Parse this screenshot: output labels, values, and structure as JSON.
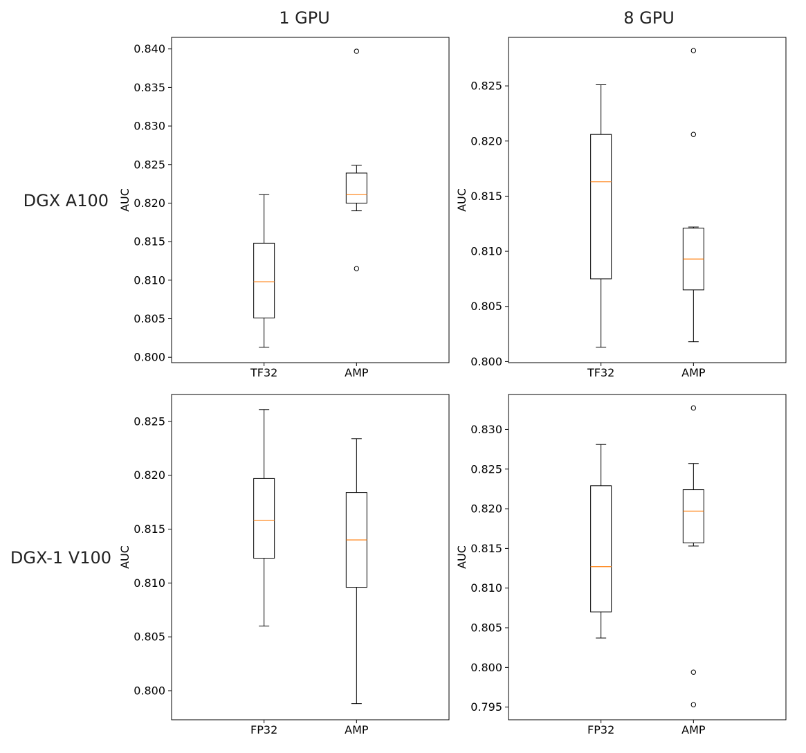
{
  "column_titles": [
    "1 GPU",
    "8 GPU"
  ],
  "row_titles": [
    "DGX A100",
    "DGX-1 V100"
  ],
  "colors": {
    "box": "#000000",
    "median": "#ff7f0e",
    "frame": "#000000"
  },
  "chart_data": [
    {
      "type": "box",
      "column": "1 GPU",
      "row": "DGX A100",
      "categories": [
        "TF32",
        "AMP"
      ],
      "ylabel": "AUC",
      "ylim": [
        0.7993,
        0.8415
      ],
      "yticks": [
        0.8,
        0.805,
        0.81,
        0.815,
        0.82,
        0.825,
        0.83,
        0.835,
        0.84
      ],
      "ytick_labels": [
        "0.800",
        "0.805",
        "0.810",
        "0.815",
        "0.820",
        "0.825",
        "0.830",
        "0.835",
        "0.840"
      ],
      "boxes": [
        {
          "category": "TF32",
          "whislo": 0.8013,
          "q1": 0.8051,
          "med": 0.8098,
          "q3": 0.8148,
          "whishi": 0.8211,
          "fliers": []
        },
        {
          "category": "AMP",
          "whislo": 0.819,
          "q1": 0.82,
          "med": 0.8211,
          "q3": 0.8239,
          "whishi": 0.8249,
          "fliers": [
            0.8397,
            0.8115
          ]
        }
      ]
    },
    {
      "type": "box",
      "column": "8 GPU",
      "row": "DGX A100",
      "categories": [
        "TF32",
        "AMP"
      ],
      "ylabel": "AUC",
      "ylim": [
        0.7999,
        0.8294
      ],
      "yticks": [
        0.8,
        0.805,
        0.81,
        0.815,
        0.82,
        0.825
      ],
      "ytick_labels": [
        "0.800",
        "0.805",
        "0.810",
        "0.815",
        "0.820",
        "0.825"
      ],
      "boxes": [
        {
          "category": "TF32",
          "whislo": 0.8013,
          "q1": 0.8075,
          "med": 0.8163,
          "q3": 0.8206,
          "whishi": 0.8251,
          "fliers": []
        },
        {
          "category": "AMP",
          "whislo": 0.8018,
          "q1": 0.8065,
          "med": 0.8093,
          "q3": 0.8121,
          "whishi": 0.8122,
          "fliers": [
            0.8282,
            0.8206
          ]
        }
      ]
    },
    {
      "type": "box",
      "column": "1 GPU",
      "row": "DGX-1 V100",
      "categories": [
        "FP32",
        "AMP"
      ],
      "ylabel": "AUC",
      "ylim": [
        0.7973,
        0.8275
      ],
      "yticks": [
        0.8,
        0.805,
        0.81,
        0.815,
        0.82,
        0.825
      ],
      "ytick_labels": [
        "0.800",
        "0.805",
        "0.810",
        "0.815",
        "0.820",
        "0.825"
      ],
      "boxes": [
        {
          "category": "FP32",
          "whislo": 0.806,
          "q1": 0.8123,
          "med": 0.8158,
          "q3": 0.8197,
          "whishi": 0.8261,
          "fliers": []
        },
        {
          "category": "AMP",
          "whislo": 0.7988,
          "q1": 0.8096,
          "med": 0.814,
          "q3": 0.8184,
          "whishi": 0.8234,
          "fliers": []
        }
      ]
    },
    {
      "type": "box",
      "column": "8 GPU",
      "row": "DGX-1 V100",
      "categories": [
        "FP32",
        "AMP"
      ],
      "ylabel": "AUC",
      "ylim": [
        0.7934,
        0.8344
      ],
      "yticks": [
        0.795,
        0.8,
        0.805,
        0.81,
        0.815,
        0.82,
        0.825,
        0.83
      ],
      "ytick_labels": [
        "0.795",
        "0.800",
        "0.805",
        "0.810",
        "0.815",
        "0.820",
        "0.825",
        "0.830"
      ],
      "boxes": [
        {
          "category": "FP32",
          "whislo": 0.8037,
          "q1": 0.807,
          "med": 0.8127,
          "q3": 0.8229,
          "whishi": 0.8281,
          "fliers": []
        },
        {
          "category": "AMP",
          "whislo": 0.8153,
          "q1": 0.8157,
          "med": 0.8197,
          "q3": 0.8224,
          "whishi": 0.8257,
          "fliers": [
            0.8327,
            0.7994,
            0.7953
          ]
        }
      ]
    }
  ]
}
